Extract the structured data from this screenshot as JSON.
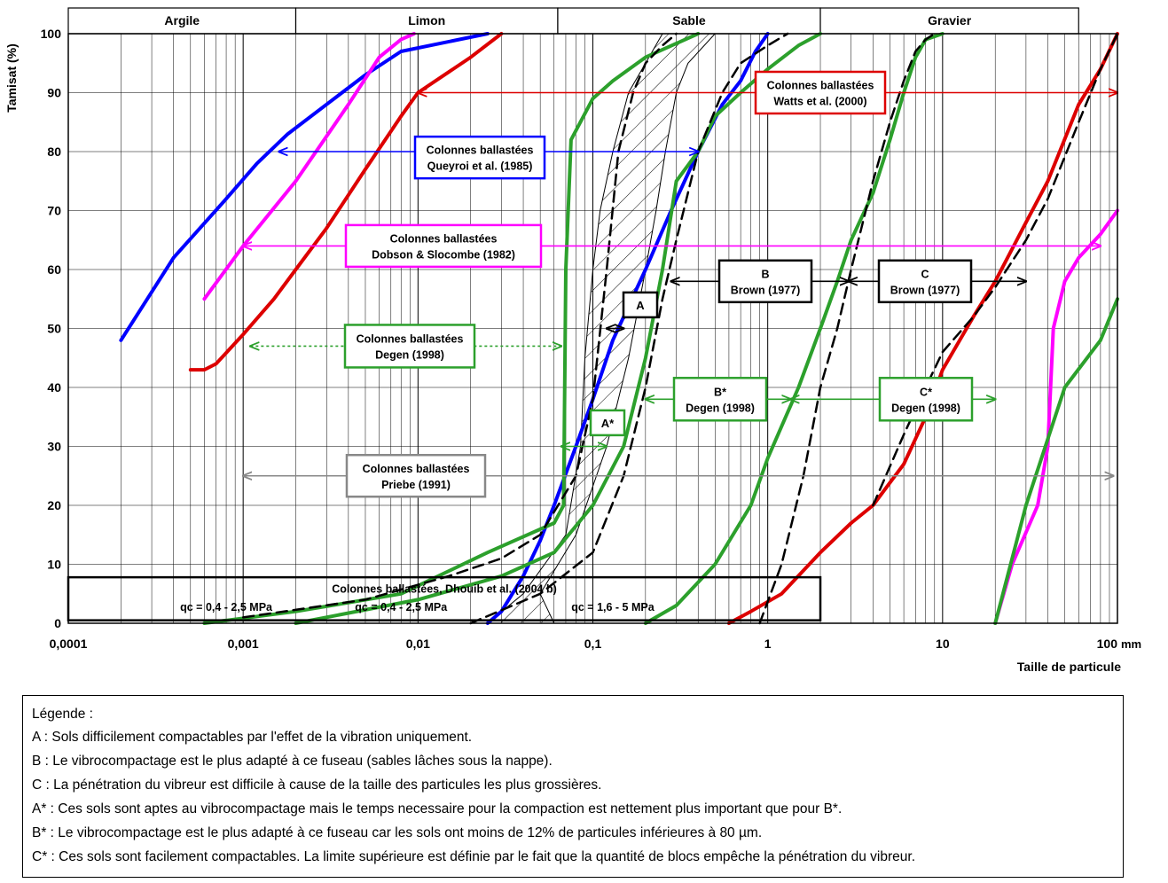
{
  "chart_data": {
    "type": "line",
    "x_scale": "log",
    "xlim": [
      0.0001,
      100
    ],
    "ylim": [
      0,
      100
    ],
    "grid": true,
    "ylabel": "Tamisat (%)",
    "xlabel": "Taille de particule",
    "x_unit": "mm",
    "x_ticks": [
      "0,0001",
      "0,001",
      "0,01",
      "0,1",
      "1",
      "10",
      "100"
    ],
    "y_ticks": [
      "0",
      "10",
      "20",
      "30",
      "40",
      "50",
      "60",
      "70",
      "80",
      "90",
      "100"
    ],
    "soil_classes": [
      "Argile",
      "Limon",
      "Sable",
      "Gravier"
    ],
    "series": [
      {
        "color": "#0000ff",
        "style": "solid",
        "x": [
          0.0002,
          0.0004,
          0.0008,
          0.0012,
          0.0018,
          0.003,
          0.005,
          0.008,
          0.025
        ],
        "y": [
          48,
          62,
          72,
          78,
          83,
          88,
          93,
          97,
          100
        ]
      },
      {
        "color": "#0000ff",
        "style": "solid",
        "x": [
          0.025,
          0.03,
          0.04,
          0.05,
          0.06,
          0.08,
          0.1,
          0.13,
          0.2,
          0.28,
          0.4,
          0.55,
          0.7,
          0.85,
          1.0
        ],
        "y": [
          0,
          2,
          8,
          14,
          20,
          30,
          38,
          48,
          60,
          70,
          80,
          88,
          92,
          97,
          100
        ]
      },
      {
        "color": "#ff00ff",
        "style": "solid",
        "x": [
          0.0006,
          0.001,
          0.002,
          0.004,
          0.006,
          0.008,
          0.0095
        ],
        "y": [
          55,
          64,
          75,
          88,
          96,
          99,
          100
        ]
      },
      {
        "color": "#ff00ff",
        "style": "solid",
        "x": [
          20,
          25,
          35,
          40,
          43,
          50,
          60,
          80,
          100
        ],
        "y": [
          0,
          10,
          20,
          30,
          50,
          58,
          62,
          66,
          70
        ]
      },
      {
        "color": "#dd0000",
        "style": "solid",
        "x": [
          0.0005,
          0.0006,
          0.0007,
          0.001,
          0.0015,
          0.002,
          0.003,
          0.005,
          0.008,
          0.01,
          0.02,
          0.03
        ],
        "y": [
          43,
          43,
          44,
          49,
          55,
          60,
          67,
          77,
          86,
          90,
          96,
          100
        ]
      },
      {
        "color": "#dd0000",
        "style": "solid",
        "x": [
          0.6,
          0.8,
          1.2,
          2.0,
          3.0,
          4.0,
          6.0,
          8.0,
          10,
          15,
          20,
          30,
          40,
          60,
          80,
          100
        ],
        "y": [
          0,
          2,
          5,
          12,
          17,
          20,
          27,
          35,
          43,
          52,
          58,
          68,
          75,
          88,
          94,
          100
        ]
      },
      {
        "color": "#2ca02c",
        "style": "solid",
        "x": [
          0.0006,
          0.002,
          0.008,
          0.025,
          0.06,
          0.068,
          0.07,
          0.075,
          0.1,
          0.13,
          0.2,
          0.4
        ],
        "y": [
          0,
          2,
          5,
          12,
          17,
          20,
          60,
          82,
          89,
          92,
          96,
          100
        ]
      },
      {
        "color": "#2ca02c",
        "style": "solid",
        "x": [
          0.002,
          0.01,
          0.03,
          0.06,
          0.1,
          0.15,
          0.2,
          0.25,
          0.3,
          0.4,
          0.5,
          0.7,
          1.0,
          1.5,
          2.0
        ],
        "y": [
          0,
          4,
          8,
          12,
          20,
          30,
          45,
          60,
          75,
          80,
          86,
          90,
          94,
          98,
          100
        ]
      },
      {
        "color": "#2ca02c",
        "style": "solid",
        "x": [
          0.2,
          0.3,
          0.5,
          0.8,
          1.0,
          1.5,
          2.0,
          2.5,
          3.0,
          4.0,
          5.0,
          6.0,
          7.0,
          8.0,
          10
        ],
        "y": [
          0,
          3,
          10,
          20,
          28,
          40,
          50,
          58,
          65,
          73,
          82,
          90,
          96,
          99,
          100
        ]
      },
      {
        "color": "#2ca02c",
        "style": "solid",
        "x": [
          20,
          30,
          50,
          80,
          100
        ],
        "y": [
          0,
          20,
          40,
          48,
          55
        ]
      },
      {
        "color": "#000000",
        "style": "dashed",
        "x": [
          0.001,
          0.005,
          0.015,
          0.03,
          0.05,
          0.08,
          0.1,
          0.12,
          0.14,
          0.17,
          0.2,
          0.25,
          0.3
        ],
        "y": [
          1,
          4,
          8,
          11,
          15,
          25,
          38,
          60,
          80,
          90,
          95,
          98,
          100
        ]
      },
      {
        "color": "#000000",
        "style": "dashed",
        "x": [
          0.02,
          0.05,
          0.1,
          0.15,
          0.2,
          0.25,
          0.3,
          0.4,
          0.55,
          0.7,
          1.0,
          1.3
        ],
        "y": [
          0,
          5,
          12,
          25,
          40,
          55,
          65,
          80,
          90,
          95,
          98,
          100
        ]
      },
      {
        "color": "#000000",
        "style": "dashed",
        "x": [
          0.9,
          1.2,
          1.6,
          2.0,
          2.5,
          3.0,
          3.5,
          4.0,
          5.0,
          6.0,
          7.0,
          8.0,
          9.0
        ],
        "y": [
          0,
          10,
          25,
          40,
          50,
          60,
          68,
          75,
          85,
          92,
          97,
          99,
          100
        ]
      },
      {
        "color": "#000000",
        "style": "dashed",
        "x": [
          4.0,
          6.0,
          8.0,
          10,
          15,
          20,
          30,
          40,
          60,
          80,
          100
        ],
        "y": [
          20,
          32,
          40,
          46,
          52,
          57,
          65,
          72,
          85,
          94,
          100
        ]
      },
      {
        "color": "#000000",
        "style": "hatched-band",
        "x_left": [
          0.025,
          0.04,
          0.07,
          0.085,
          0.09,
          0.1,
          0.11,
          0.13,
          0.16,
          0.2,
          0.25
        ],
        "y_left": [
          0,
          5,
          15,
          30,
          45,
          60,
          70,
          80,
          90,
          95,
          100
        ],
        "x_right": [
          0.06,
          0.05,
          0.08,
          0.12,
          0.16,
          0.2,
          0.23,
          0.26,
          0.3,
          0.35,
          0.5
        ],
        "y_right": [
          0,
          5,
          15,
          30,
          45,
          60,
          70,
          80,
          90,
          95,
          100
        ]
      }
    ],
    "annotations": [
      {
        "lines": [
          "Colonnes ballastées",
          "Watts et al. (2000)"
        ],
        "color": "#dd0000",
        "x_range": [
          0.01,
          100
        ],
        "y": 90
      },
      {
        "lines": [
          "Colonnes ballastées",
          "Queyroi et al. (1985)"
        ],
        "color": "#0000ff",
        "x_range": [
          0.0016,
          0.4
        ],
        "y": 80
      },
      {
        "lines": [
          "Colonnes ballastées",
          "Dobson & Slocombe (1982)"
        ],
        "color": "#ff00ff",
        "x_range": [
          0.001,
          80
        ],
        "y": 64
      },
      {
        "lines": [
          "B",
          "Brown (1977)"
        ],
        "color": "#000000",
        "x_range": [
          0.28,
          2.9
        ],
        "y": 58
      },
      {
        "lines": [
          "C",
          "Brown (1977)"
        ],
        "color": "#000000",
        "x_range": [
          2.9,
          30
        ],
        "y": 58
      },
      {
        "lines": [
          "A"
        ],
        "color": "#000000",
        "x_range": [
          0.12,
          0.15
        ],
        "y": 50
      },
      {
        "lines": [
          "Colonnes ballastées",
          "Degen (1998)"
        ],
        "color": "#2ca02c",
        "x_range": [
          0.0011,
          0.066
        ],
        "y": 47
      },
      {
        "lines": [
          "B*",
          "Degen (1998)"
        ],
        "color": "#2ca02c",
        "x_range": [
          0.2,
          1.35
        ],
        "y": 38
      },
      {
        "lines": [
          "C*",
          "Degen (1998)"
        ],
        "color": "#2ca02c",
        "x_range": [
          1.35,
          20
        ],
        "y": 38
      },
      {
        "lines": [
          "A*"
        ],
        "color": "#2ca02c",
        "x_range": [
          0.066,
          0.12
        ],
        "y": 30
      },
      {
        "lines": [
          "Colonnes ballastées",
          "Priebe (1991)"
        ],
        "color": "#888888",
        "x_range": [
          0.001,
          95
        ],
        "y": 25
      }
    ],
    "dhouib_box": {
      "title": "Colonnes ballastées, Dhouib et al. (2004 b)",
      "labels": [
        "qc = 0,4 - 2,5 MPa",
        "qc = 0,4 - 2,5 MPa",
        "qc = 1,6 - 5 MPa"
      ]
    }
  },
  "legend": {
    "title": "Légende :",
    "items": [
      "A : Sols difficilement compactables par l'effet de la vibration uniquement.",
      "B : Le vibrocompactage est le plus adapté à ce fuseau (sables lâches sous la nappe).",
      "C : La pénétration du vibreur est difficile à cause de la taille des particules les plus grossières.",
      "A* : Ces sols sont aptes au vibrocompactage mais le temps necessaire pour la compaction est nettement plus important que pour B*.",
      "B* : Le vibrocompactage est le plus adapté à ce fuseau car les sols ont moins de 12% de particules inférieures à 80 µm.",
      "C* : Ces sols sont facilement compactables. La limite supérieure est définie par le fait que la quantité de blocs empêche la pénétration du vibreur."
    ]
  }
}
